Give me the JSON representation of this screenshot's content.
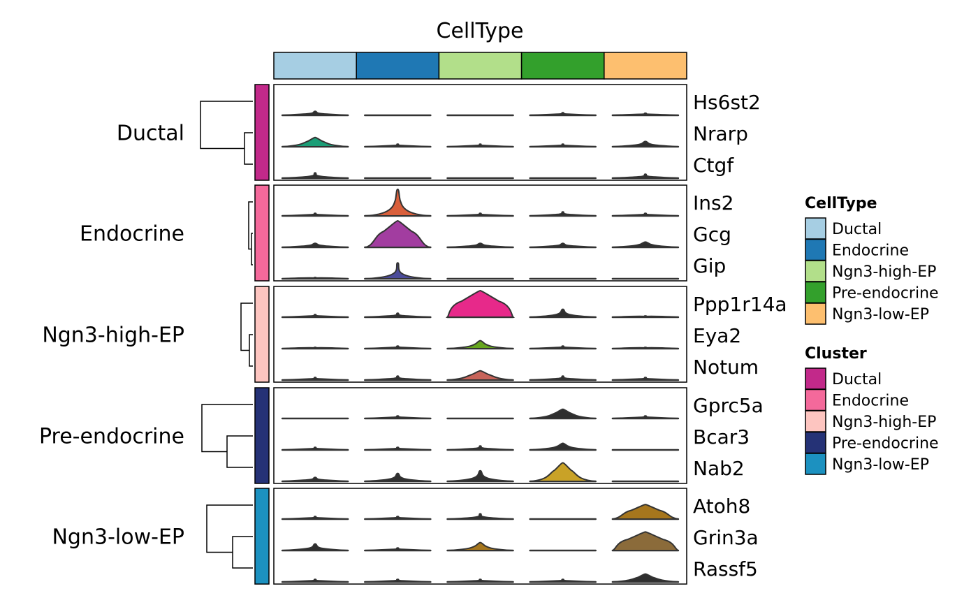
{
  "chart_data": {
    "type": "violin-heatmap",
    "title": "CellType",
    "columns": [
      {
        "name": "Ductal",
        "color": "#A6CEE3"
      },
      {
        "name": "Endocrine",
        "color": "#1F78B4"
      },
      {
        "name": "Ngn3-high-EP",
        "color": "#B2DF8A"
      },
      {
        "name": "Pre-endocrine",
        "color": "#33A02C"
      },
      {
        "name": "Ngn3-low-EP",
        "color": "#FDBF6F"
      }
    ],
    "groups": [
      {
        "name": "Ductal",
        "color": "#C2298A",
        "genes": [
          "Hs6st2",
          "Nrarp",
          "Ctgf"
        ]
      },
      {
        "name": "Endocrine",
        "color": "#F4699B",
        "genes": [
          "Ins2",
          "Gcg",
          "Gip"
        ]
      },
      {
        "name": "Ngn3-high-EP",
        "color": "#FDC5C0",
        "genes": [
          "Ppp1r14a",
          "Eya2",
          "Notum"
        ]
      },
      {
        "name": "Pre-endocrine",
        "color": "#253276",
        "genes": [
          "Gprc5a",
          "Bcar3",
          "Nab2"
        ]
      },
      {
        "name": "Ngn3-low-EP",
        "color": "#1C91C0",
        "genes": [
          "Atoh8",
          "Grin3a",
          "Rassf5"
        ]
      }
    ],
    "violins": [
      [
        [
          0.15,
          0.1
        ],
        [
          0.0,
          0.0
        ],
        [
          0.0,
          0.0
        ],
        [
          0.1,
          0.05
        ],
        [
          0.08,
          0.05
        ]
      ],
      [
        [
          0.35,
          0.3
        ],
        [
          0.1,
          0.03
        ],
        [
          0.1,
          0.03
        ],
        [
          0.1,
          0.03
        ],
        [
          0.2,
          0.15
        ]
      ],
      [
        [
          0.2,
          0.05
        ],
        [
          0.0,
          0.0
        ],
        [
          0.0,
          0.0
        ],
        [
          0.0,
          0.0
        ],
        [
          0.15,
          0.05
        ]
      ],
      [
        [
          0.1,
          0.05
        ],
        [
          1.0,
          0.1
        ],
        [
          0.1,
          0.05
        ],
        [
          0.15,
          0.05
        ],
        [
          0.1,
          0.05
        ]
      ],
      [
        [
          0.15,
          0.15
        ],
        [
          1.0,
          0.6
        ],
        [
          0.15,
          0.15
        ],
        [
          0.15,
          0.12
        ],
        [
          0.2,
          0.2
        ]
      ],
      [
        [
          0.05,
          0.05
        ],
        [
          0.6,
          0.05
        ],
        [
          0.0,
          0.0
        ],
        [
          0.0,
          0.0
        ],
        [
          0.0,
          0.0
        ]
      ],
      [
        [
          0.1,
          0.05
        ],
        [
          0.15,
          0.05
        ],
        [
          1.0,
          0.8
        ],
        [
          0.3,
          0.1
        ],
        [
          0.05,
          0.05
        ]
      ],
      [
        [
          0.05,
          0.05
        ],
        [
          0.1,
          0.05
        ],
        [
          0.3,
          0.2
        ],
        [
          0.1,
          0.05
        ],
        [
          0.05,
          0.05
        ]
      ],
      [
        [
          0.1,
          0.05
        ],
        [
          0.15,
          0.05
        ],
        [
          0.35,
          0.35
        ],
        [
          0.15,
          0.05
        ],
        [
          0.1,
          0.05
        ]
      ],
      [
        [
          0.0,
          0.0
        ],
        [
          0.1,
          0.05
        ],
        [
          0.0,
          0.0
        ],
        [
          0.35,
          0.3
        ],
        [
          0.1,
          0.05
        ]
      ],
      [
        [
          0.1,
          0.05
        ],
        [
          0.1,
          0.05
        ],
        [
          0.15,
          0.05
        ],
        [
          0.25,
          0.2
        ],
        [
          0.0,
          0.0
        ]
      ],
      [
        [
          0.15,
          0.1
        ],
        [
          0.3,
          0.1
        ],
        [
          0.4,
          0.1
        ],
        [
          0.7,
          0.35
        ],
        [
          0.0,
          0.0
        ]
      ],
      [
        [
          0.1,
          0.05
        ],
        [
          0.1,
          0.05
        ],
        [
          0.2,
          0.05
        ],
        [
          0.0,
          0.0
        ],
        [
          0.55,
          0.6
        ]
      ],
      [
        [
          0.25,
          0.1
        ],
        [
          0.1,
          0.05
        ],
        [
          0.3,
          0.2
        ],
        [
          0.0,
          0.0
        ],
        [
          0.7,
          0.75
        ]
      ],
      [
        [
          0.1,
          0.05
        ],
        [
          0.1,
          0.05
        ],
        [
          0.1,
          0.05
        ],
        [
          0.1,
          0.05
        ],
        [
          0.3,
          0.3
        ]
      ]
    ],
    "violin_colors": [
      [
        "#2F2F2F",
        "#2F2F2F",
        "#2F2F2F",
        "#2F2F2F",
        "#2F2F2F"
      ],
      [
        "#1B9E77",
        "#2F2F2F",
        "#2F2F2F",
        "#2F2F2F",
        "#2F2F2F"
      ],
      [
        "#2F2F2F",
        "#2F2F2F",
        "#2F2F2F",
        "#2F2F2F",
        "#2F2F2F"
      ],
      [
        "#2F2F2F",
        "#D95F3B",
        "#2F2F2F",
        "#2F2F2F",
        "#2F2F2F"
      ],
      [
        "#2F2F2F",
        "#A23DA0",
        "#2F2F2F",
        "#2F2F2F",
        "#2F2F2F"
      ],
      [
        "#2F2F2F",
        "#4B4B9A",
        "#2F2F2F",
        "#2F2F2F",
        "#2F2F2F"
      ],
      [
        "#2F2F2F",
        "#2F2F2F",
        "#E7298A",
        "#2F2F2F",
        "#2F2F2F"
      ],
      [
        "#2F2F2F",
        "#2F2F2F",
        "#66A61E",
        "#2F2F2F",
        "#2F2F2F"
      ],
      [
        "#2F2F2F",
        "#2F2F2F",
        "#C8645A",
        "#2F2F2F",
        "#2F2F2F"
      ],
      [
        "#2F2F2F",
        "#2F2F2F",
        "#2F2F2F",
        "#2F2F2F",
        "#2F2F2F"
      ],
      [
        "#2F2F2F",
        "#2F2F2F",
        "#2F2F2F",
        "#2F2F2F",
        "#2F2F2F"
      ],
      [
        "#2F2F2F",
        "#2F2F2F",
        "#2F2F2F",
        "#C9A227",
        "#2F2F2F"
      ],
      [
        "#2F2F2F",
        "#2F2F2F",
        "#2F2F2F",
        "#2F2F2F",
        "#A6761D"
      ],
      [
        "#2F2F2F",
        "#2F2F2F",
        "#A6761D",
        "#2F2F2F",
        "#8B6B3A"
      ],
      [
        "#2F2F2F",
        "#2F2F2F",
        "#2F2F2F",
        "#2F2F2F",
        "#2F2F2F"
      ]
    ],
    "legends": [
      {
        "title": "CellType",
        "items": [
          {
            "label": "Ductal",
            "color": "#A6CEE3"
          },
          {
            "label": "Endocrine",
            "color": "#1F78B4"
          },
          {
            "label": "Ngn3-high-EP",
            "color": "#B2DF8A"
          },
          {
            "label": "Pre-endocrine",
            "color": "#33A02C"
          },
          {
            "label": "Ngn3-low-EP",
            "color": "#FDBF6F"
          }
        ]
      },
      {
        "title": "Cluster",
        "items": [
          {
            "label": "Ductal",
            "color": "#C2298A"
          },
          {
            "label": "Endocrine",
            "color": "#F4699B"
          },
          {
            "label": "Ngn3-high-EP",
            "color": "#FDC5C0"
          },
          {
            "label": "Pre-endocrine",
            "color": "#253276"
          },
          {
            "label": "Ngn3-low-EP",
            "color": "#1C91C0"
          }
        ]
      }
    ]
  }
}
